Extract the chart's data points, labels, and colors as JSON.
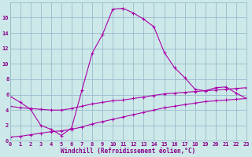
{
  "xlabel": "Windchill (Refroidissement éolien,°C)",
  "bg_color": "#cce8e8",
  "grid_color": "#99bbcc",
  "line_color": "#aa00aa",
  "label_color": "#880088",
  "hours": [
    0,
    1,
    2,
    3,
    4,
    5,
    6,
    7,
    8,
    9,
    10,
    11,
    12,
    13,
    14,
    15,
    16,
    17,
    18,
    19,
    20,
    21,
    22,
    23
  ],
  "line1": [
    5.8,
    5.0,
    4.1,
    2.0,
    1.5,
    0.7,
    1.7,
    6.6,
    11.4,
    13.8,
    17.1,
    17.2,
    16.6,
    15.8,
    14.8,
    11.5,
    9.5,
    8.2,
    6.7,
    6.5,
    6.9,
    7.0,
    6.2,
    5.5
  ],
  "line2": [
    4.5,
    4.3,
    4.2,
    4.1,
    4.0,
    4.0,
    4.2,
    4.5,
    4.8,
    5.0,
    5.2,
    5.3,
    5.5,
    5.7,
    5.9,
    6.1,
    6.2,
    6.3,
    6.4,
    6.5,
    6.6,
    6.7,
    6.8,
    6.9
  ],
  "line3": [
    0.5,
    0.6,
    0.8,
    1.0,
    1.2,
    1.3,
    1.5,
    1.8,
    2.2,
    2.5,
    2.8,
    3.1,
    3.4,
    3.7,
    4.0,
    4.3,
    4.5,
    4.7,
    4.9,
    5.1,
    5.2,
    5.3,
    5.4,
    5.5
  ],
  "ylim": [
    0,
    18
  ],
  "yticks": [
    0,
    2,
    4,
    6,
    8,
    10,
    12,
    14,
    16
  ],
  "xlim": [
    0,
    23
  ],
  "tick_fontsize": 5.0,
  "xlabel_fontsize": 5.5
}
